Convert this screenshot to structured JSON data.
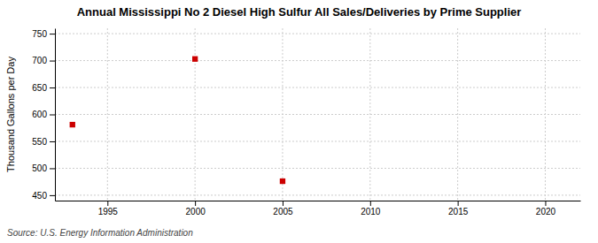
{
  "chart_data": {
    "type": "scatter",
    "title": "Annual Mississippi No 2 Diesel High Sulfur All Sales/Deliveries by Prime Supplier",
    "ylabel": "Thousand Gallons per Day",
    "source": "Source: U.S. Energy Information Administration",
    "x": [
      1993,
      2000,
      2005
    ],
    "values": [
      581,
      703,
      476
    ],
    "color": "#cc0000",
    "marker": "square",
    "xlim": [
      1992,
      2022
    ],
    "ylim": [
      440,
      760
    ],
    "xticks": [
      1995,
      2000,
      2005,
      2010,
      2015,
      2020
    ],
    "yticks": [
      450,
      500,
      550,
      600,
      650,
      700,
      750
    ],
    "grid": true
  }
}
